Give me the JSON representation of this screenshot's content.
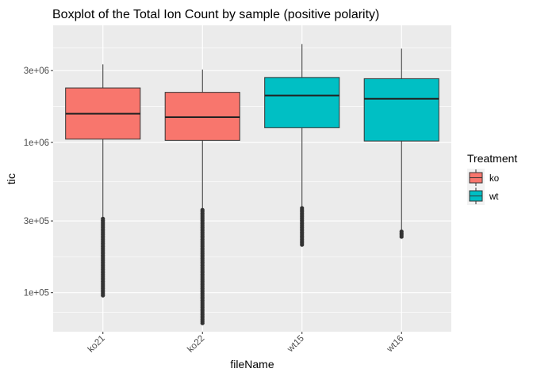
{
  "chart_data": {
    "type": "boxplot",
    "title": "Boxplot of the Total Ion Count by sample (positive polarity)",
    "xlabel": "fileName",
    "ylabel": "tic",
    "y_scale": "log10",
    "ylim": [
      55000,
      6000000
    ],
    "y_ticks": [
      {
        "value": 100000,
        "label": "1e+05"
      },
      {
        "value": 300000,
        "label": "3e+05"
      },
      {
        "value": 1000000,
        "label": "1e+06"
      },
      {
        "value": 3000000,
        "label": "3e+06"
      }
    ],
    "categories": [
      "ko21",
      "ko22",
      "wt15",
      "wt16"
    ],
    "grid": true,
    "legend": {
      "title": "Treatment",
      "position": "right",
      "entries": [
        {
          "label": "ko",
          "color": "#F8766D"
        },
        {
          "label": "wt",
          "color": "#00BFC4"
        }
      ]
    },
    "boxes": [
      {
        "category": "ko21",
        "group": "ko",
        "color": "#F8766D",
        "min": 315000,
        "q1": 1050000,
        "median": 1550000,
        "q3": 2300000,
        "max": 3300000,
        "outliers": {
          "from": 95000,
          "to": 310000
        }
      },
      {
        "category": "ko22",
        "group": "ko",
        "color": "#F8766D",
        "min": 360000,
        "q1": 1030000,
        "median": 1470000,
        "q3": 2150000,
        "max": 3050000,
        "outliers": {
          "from": 62000,
          "to": 355000
        }
      },
      {
        "category": "wt15",
        "group": "wt",
        "color": "#00BFC4",
        "min": 370000,
        "q1": 1250000,
        "median": 2050000,
        "q3": 2700000,
        "max": 4500000,
        "outliers": {
          "from": 205000,
          "to": 365000
        }
      },
      {
        "category": "wt16",
        "group": "wt",
        "color": "#00BFC4",
        "min": 260000,
        "q1": 1020000,
        "median": 1950000,
        "q3": 2650000,
        "max": 4200000,
        "outliers": {
          "from": 235000,
          "to": 255000
        }
      }
    ]
  }
}
